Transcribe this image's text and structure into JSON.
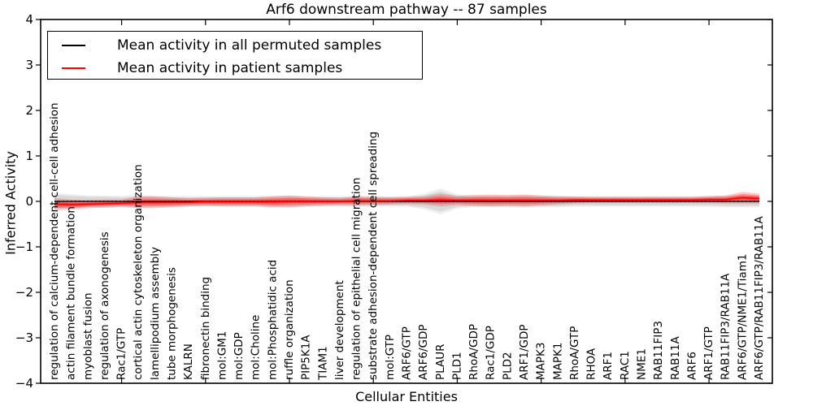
{
  "title": "Arf6 downstream pathway -- 87 samples",
  "legend": {
    "items": [
      {
        "label": "Mean activity in all permuted samples",
        "color": "#000000"
      },
      {
        "label": "Mean activity in patient samples",
        "color": "#ff0000"
      }
    ]
  },
  "chart_data": {
    "type": "line",
    "title": "Arf6 downstream pathway -- 87 samples",
    "xlabel": "Cellular Entities",
    "ylabel": "Inferred Activity",
    "ylim": [
      -4,
      4
    ],
    "yticks": [
      4,
      3,
      2,
      1,
      0,
      -1,
      -2,
      -3,
      -4
    ],
    "xtick_marks": [
      4,
      9,
      14,
      19,
      24,
      29,
      34,
      39
    ],
    "grid": false,
    "legend_position": "upper left",
    "zero_line": {
      "y": 0,
      "style": "dotted",
      "color": "#000000"
    },
    "band_colors": {
      "permuted": "#c8c8c8",
      "patient": "#ff0000"
    },
    "categories": [
      "regulation of calcium-dependent cell-cell adhesion",
      "actin filament bundle formation",
      "myoblast fusion",
      "regulation of axonogenesis",
      "Rac1/GTP",
      "cortical actin cytoskeleton organization",
      "lamellipodium assembly",
      "tube morphogenesis",
      "KALRN",
      "fibronectin binding",
      "mol:GM1",
      "mol:GDP",
      "mol:Choline",
      "mol:Phosphatidic acid",
      "ruffle organization",
      "PIP5K1A",
      "TIAM1",
      "liver development",
      "regulation of epithelial cell migration",
      "substrate adhesion-dependent cell spreading",
      "mol:GTP",
      "ARF6/GTP",
      "ARF6/GDP",
      "PLAUR",
      "PLD1",
      "RhoA/GDP",
      "Rac1/GDP",
      "PLD2",
      "ARF1/GDP",
      "MAPK3",
      "MAPK1",
      "RhoA/GTP",
      "RHOA",
      "ARF1",
      "RAC1",
      "NME1",
      "RAB11FIP3",
      "RAB11A",
      "ARF6",
      "ARF1/GTP",
      "RAB11FIP3/RAB11A",
      "ARF6/GTP/NME1/Tiam1",
      "ARF6/GTP/RAB11FIP3/RAB11A"
    ],
    "series": [
      {
        "name": "Mean activity in all permuted samples",
        "color": "#000000",
        "values": [
          0,
          0,
          0,
          0,
          0,
          0,
          0,
          0,
          0,
          0,
          0,
          0,
          0,
          0,
          0,
          0,
          0,
          0,
          0,
          0,
          0,
          0,
          0,
          0,
          0,
          0,
          0,
          0,
          0,
          0,
          0,
          0,
          0,
          0,
          0,
          0,
          0,
          0,
          0,
          0,
          0,
          0,
          0
        ],
        "band": [
          0.14,
          0.12,
          0.1,
          0.1,
          0.09,
          0.11,
          0.1,
          0.09,
          0.09,
          0.09,
          0.09,
          0.09,
          0.09,
          0.1,
          0.1,
          0.09,
          0.09,
          0.09,
          0.09,
          0.09,
          0.09,
          0.09,
          0.13,
          0.22,
          0.12,
          0.1,
          0.1,
          0.1,
          0.11,
          0.1,
          0.1,
          0.09,
          0.09,
          0.09,
          0.09,
          0.09,
          0.09,
          0.09,
          0.09,
          0.09,
          0.1,
          0.1,
          0.1
        ]
      },
      {
        "name": "Mean activity in patient samples",
        "color": "#ff0000",
        "values": [
          -0.06,
          -0.07,
          -0.06,
          -0.05,
          -0.04,
          -0.02,
          -0.02,
          -0.02,
          -0.02,
          -0.01,
          -0.01,
          -0.01,
          -0.01,
          -0.01,
          0,
          0,
          0,
          0,
          0.01,
          0.01,
          0.01,
          0.02,
          0.02,
          0.03,
          0.02,
          0.02,
          0.02,
          0.02,
          0.02,
          0.02,
          0.02,
          0.03,
          0.03,
          0.03,
          0.03,
          0.03,
          0.03,
          0.03,
          0.03,
          0.04,
          0.04,
          0.08,
          0.06
        ],
        "band": [
          0.13,
          0.11,
          0.09,
          0.09,
          0.08,
          0.13,
          0.13,
          0.11,
          0.09,
          0.09,
          0.1,
          0.1,
          0.1,
          0.12,
          0.13,
          0.11,
          0.09,
          0.08,
          0.1,
          0.09,
          0.08,
          0.08,
          0.09,
          0.14,
          0.1,
          0.12,
          0.13,
          0.12,
          0.13,
          0.11,
          0.09,
          0.08,
          0.07,
          0.07,
          0.07,
          0.07,
          0.07,
          0.07,
          0.07,
          0.08,
          0.09,
          0.13,
          0.11
        ]
      }
    ]
  }
}
